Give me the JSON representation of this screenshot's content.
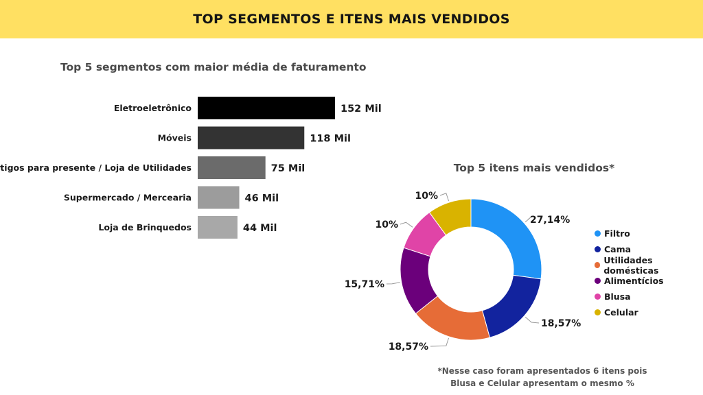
{
  "header": {
    "title": "TOP SEGMENTOS E ITENS MAIS VENDIDOS"
  },
  "colors": {
    "header_bg": "#FFE062"
  },
  "chart_data": [
    {
      "type": "bar",
      "orientation": "horizontal",
      "title": "Top 5 segmentos com maior média de faturamento",
      "categories": [
        "Eletroeletrônico",
        "Móveis",
        "Artigos para presente / Loja de Utilidades",
        "Supermercado / Mercearia",
        "Loja de Brinquedos"
      ],
      "values": [
        152,
        118,
        75,
        46,
        44
      ],
      "value_labels": [
        "152 Mil",
        "118 Mil",
        "75 Mil",
        "46 Mil",
        "44 Mil"
      ],
      "colors": [
        "#000000",
        "#333333",
        "#6b6b6b",
        "#9c9c9c",
        "#a8a8a8"
      ],
      "xlim": [
        0,
        152
      ],
      "grid": false,
      "legend": "none"
    },
    {
      "type": "pie",
      "donut": true,
      "title": "Top 5 itens mais vendidos*",
      "labels": [
        "Filtro",
        "Cama",
        "Utilidades domésticas",
        "Alimentícios",
        "Blusa",
        "Celular"
      ],
      "values": [
        27.14,
        18.57,
        18.57,
        15.71,
        10,
        10
      ],
      "value_labels": [
        "27,14%",
        "18,57%",
        "18,57%",
        "15,71%",
        "10%",
        "10%"
      ],
      "colors": [
        "#1F93F5",
        "#12239E",
        "#E66C37",
        "#6B007B",
        "#E044A7",
        "#D9B300"
      ],
      "legend": "right",
      "footnote": [
        "*Nesse caso foram apresentados 6 itens pois",
        "Blusa e Celular apresentam o mesmo %"
      ]
    }
  ]
}
